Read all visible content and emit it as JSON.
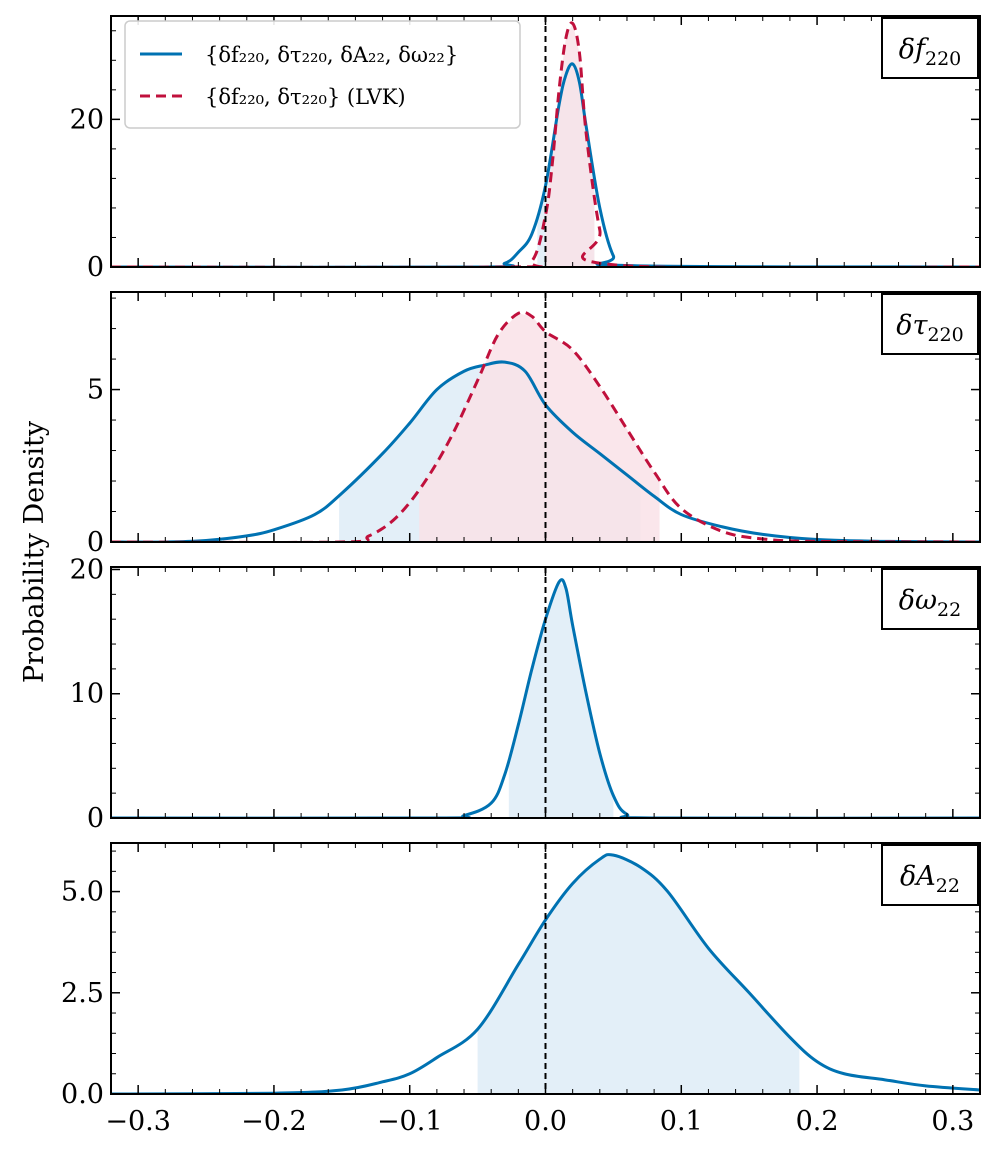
{
  "chart_data": {
    "type": "line",
    "ylabel": "Probability Density",
    "xlim": [
      -0.32,
      0.32
    ],
    "x_ticks": [
      "−0.3",
      "−0.2",
      "−0.1",
      "0.0",
      "0.1",
      "0.2",
      "0.3"
    ],
    "x_tick_values": [
      -0.3,
      -0.2,
      -0.1,
      0.0,
      0.1,
      0.2,
      0.3
    ],
    "reference_line_x": 0.0,
    "colors": {
      "full": "#0072b2",
      "lvk": "#c0103c",
      "full_fill": "#e3eff8",
      "lvk_fill": "#f9e2e8"
    },
    "legend": {
      "placement": "top-left",
      "entries": [
        {
          "text": "{δf₂₂₀, δτ₂₂₀, δA₂₂, δω₂₂}",
          "style": "solid"
        },
        {
          "text": "{δf₂₂₀, δτ₂₂₀} (LVK)",
          "style": "dashed"
        }
      ]
    },
    "panels": [
      {
        "tag": "δf",
        "tag_sub": "220",
        "ylim": [
          0,
          34
        ],
        "y_ticks": [
          "0",
          "20"
        ],
        "y_tick_values": [
          0,
          20
        ],
        "series": [
          {
            "key": "full",
            "x": [
              -0.32,
              -0.05,
              -0.03,
              -0.02,
              -0.01,
              0.0,
              0.01,
              0.015,
              0.02,
              0.025,
              0.03,
              0.04,
              0.05,
              0.06,
              0.32
            ],
            "y": [
              0,
              0,
              0.5,
              2,
              4.5,
              11,
              22,
              26,
              27.5,
              25,
              19,
              8,
              1.5,
              0.2,
              0
            ],
            "ci": [
              -0.006,
              0.036
            ]
          },
          {
            "key": "lvk",
            "x": [
              -0.32,
              -0.03,
              -0.01,
              0.0,
              0.005,
              0.01,
              0.015,
              0.02,
              0.025,
              0.03,
              0.04,
              0.05,
              0.32
            ],
            "y": [
              0,
              0,
              0.8,
              7,
              14,
              24,
              31,
              33,
              29,
              18,
              5,
              0.3,
              0
            ],
            "ci": [
              0.0,
              0.036
            ]
          }
        ]
      },
      {
        "tag": "δτ",
        "tag_sub": "220",
        "ylim": [
          0,
          8.2
        ],
        "y_ticks": [
          "0",
          "5"
        ],
        "y_tick_values": [
          0,
          5
        ],
        "series": [
          {
            "key": "full",
            "x": [
              -0.32,
              -0.28,
              -0.25,
              -0.22,
              -0.2,
              -0.17,
              -0.15,
              -0.12,
              -0.1,
              -0.08,
              -0.06,
              -0.045,
              -0.03,
              -0.015,
              0.0,
              0.02,
              0.04,
              0.06,
              0.08,
              0.1,
              0.13,
              0.16,
              0.2,
              0.25,
              0.32
            ],
            "y": [
              0,
              0,
              0.05,
              0.2,
              0.4,
              0.9,
              1.6,
              2.9,
              3.9,
              5.0,
              5.6,
              5.8,
              5.9,
              5.6,
              4.5,
              3.6,
              2.9,
              2.2,
              1.5,
              0.9,
              0.5,
              0.25,
              0.08,
              0.02,
              0
            ],
            "ci": [
              -0.152,
              0.07
            ]
          },
          {
            "key": "lvk",
            "x": [
              -0.32,
              -0.15,
              -0.13,
              -0.11,
              -0.09,
              -0.07,
              -0.05,
              -0.035,
              -0.02,
              -0.01,
              0.0,
              0.02,
              0.04,
              0.06,
              0.08,
              0.1,
              0.13,
              0.16,
              0.2,
              0.32
            ],
            "y": [
              0,
              0,
              0.2,
              0.8,
              1.9,
              3.4,
              5.3,
              6.8,
              7.5,
              7.4,
              6.9,
              6.3,
              5.1,
              3.7,
              2.3,
              1.1,
              0.35,
              0.1,
              0.02,
              0
            ],
            "ci": [
              -0.093,
              0.084
            ]
          }
        ]
      },
      {
        "tag": "δω",
        "tag_sub": "22",
        "ylim": [
          0,
          20.2
        ],
        "y_ticks": [
          "0",
          "10",
          "20"
        ],
        "y_tick_values": [
          0,
          10,
          20
        ],
        "series": [
          {
            "key": "full",
            "x": [
              -0.32,
              -0.08,
              -0.06,
              -0.04,
              -0.03,
              -0.02,
              -0.01,
              0.0,
              0.01,
              0.015,
              0.02,
              0.03,
              0.04,
              0.05,
              0.06,
              0.08,
              0.32
            ],
            "y": [
              0,
              0,
              0.2,
              1.2,
              3.5,
              7.5,
              12,
              16,
              19,
              18.5,
              15.5,
              10,
              5.2,
              1.8,
              0.3,
              0,
              0
            ],
            "ci": [
              -0.027,
              0.05
            ]
          }
        ]
      },
      {
        "tag": "δA",
        "tag_sub": "22",
        "ylim": [
          0,
          6.2
        ],
        "y_ticks": [
          "0.0",
          "2.5",
          "5.0"
        ],
        "y_tick_values": [
          0,
          2.5,
          5.0
        ],
        "series": [
          {
            "key": "full",
            "x": [
              -0.32,
              -0.2,
              -0.15,
              -0.12,
              -0.1,
              -0.08,
              -0.05,
              -0.02,
              0.0,
              0.02,
              0.04,
              0.05,
              0.07,
              0.09,
              0.12,
              0.15,
              0.18,
              0.2,
              0.22,
              0.25,
              0.28,
              0.32
            ],
            "y": [
              0,
              0.02,
              0.1,
              0.3,
              0.5,
              0.9,
              1.6,
              3.2,
              4.3,
              5.2,
              5.8,
              5.9,
              5.6,
              5.0,
              3.6,
              2.5,
              1.4,
              0.8,
              0.5,
              0.35,
              0.2,
              0.1
            ],
            "ci": [
              -0.05,
              0.187
            ]
          }
        ]
      }
    ]
  }
}
